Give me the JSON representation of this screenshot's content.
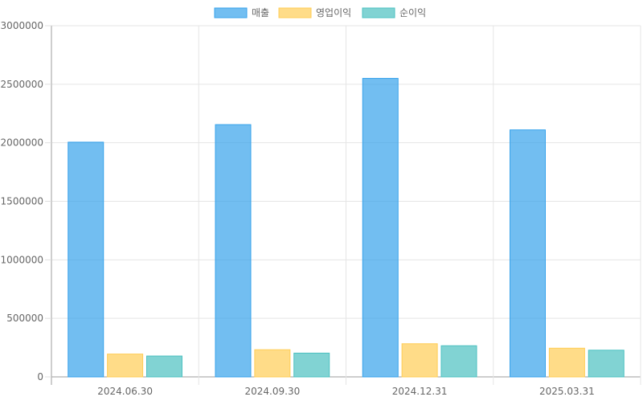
{
  "chart_data": {
    "type": "bar",
    "categories": [
      "2024.06.30",
      "2024.09.30",
      "2024.12.31",
      "2025.03.31"
    ],
    "series": [
      {
        "name": "매출",
        "values": [
          2005000,
          2155000,
          2550000,
          2110000
        ],
        "color": "#36A2EB"
      },
      {
        "name": "영업이익",
        "values": [
          195000,
          232000,
          283000,
          245000
        ],
        "color": "#FFCD56"
      },
      {
        "name": "순이익",
        "values": [
          178000,
          203000,
          266000,
          228000
        ],
        "color": "#4BC0C0"
      }
    ],
    "ylim": [
      0,
      3000000
    ],
    "yticks": [
      0,
      500000,
      1000000,
      1500000,
      2000000,
      2500000,
      3000000
    ],
    "legend_position": "top",
    "grid": true
  }
}
